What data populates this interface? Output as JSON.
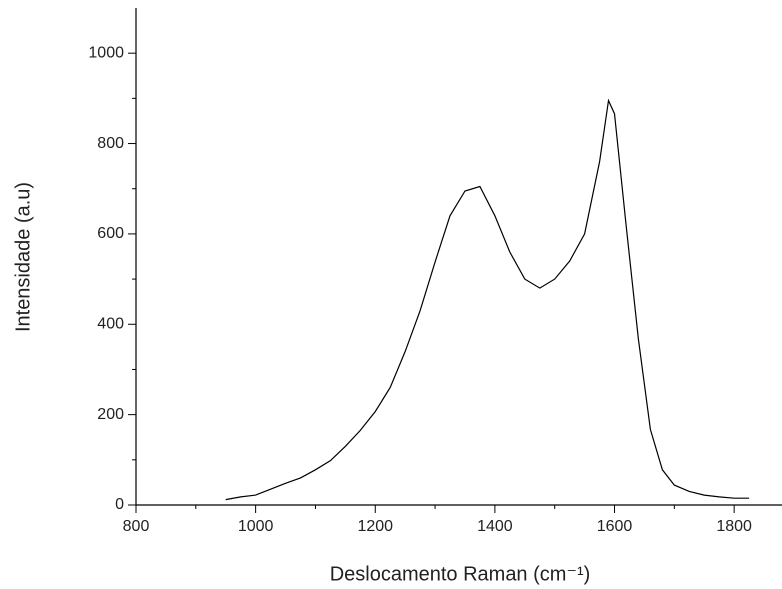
{
  "chart_data": {
    "type": "line",
    "xlabel": "Deslocamento Raman (cm⁻¹)",
    "ylabel": "Intensidade (a.u)",
    "x": [
      950,
      975,
      1000,
      1025,
      1050,
      1075,
      1100,
      1125,
      1150,
      1175,
      1200,
      1225,
      1250,
      1275,
      1300,
      1325,
      1350,
      1375,
      1400,
      1425,
      1450,
      1475,
      1500,
      1525,
      1550,
      1575,
      1590,
      1600,
      1620,
      1640,
      1660,
      1680,
      1700,
      1725,
      1750,
      1775,
      1800,
      1825
    ],
    "series": [
      {
        "color": "#000000",
        "values": [
          12,
          18,
          22,
          35,
          48,
          60,
          78,
          98,
          130,
          165,
          207,
          260,
          340,
          430,
          538,
          640,
          695,
          705,
          640,
          560,
          500,
          480,
          500,
          540,
          600,
          760,
          895,
          866,
          611,
          367,
          167,
          78,
          44,
          30,
          22,
          18,
          15,
          15
        ]
      }
    ],
    "xlim": [
      800,
      1880
    ],
    "xticks": [
      800,
      1000,
      1200,
      1400,
      1600,
      1800
    ],
    "xminorticks": [
      900,
      1100,
      1300,
      1500,
      1700
    ],
    "ylim": [
      0,
      1100
    ],
    "yticks": [
      0,
      200,
      400,
      600,
      800,
      1000
    ],
    "yminorticks": [
      100,
      300,
      500,
      700,
      900
    ]
  }
}
